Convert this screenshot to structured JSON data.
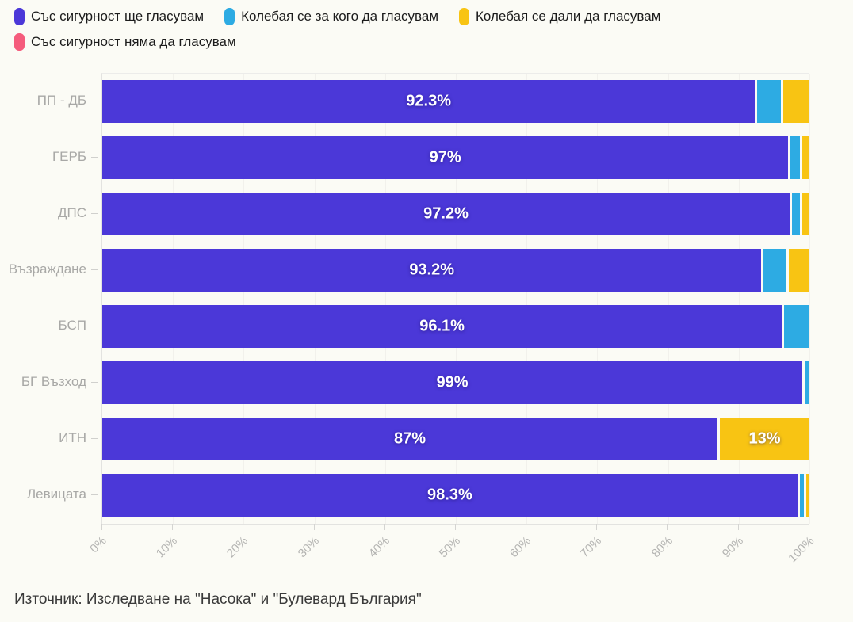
{
  "page": {
    "background": "#fbfbf5"
  },
  "legend": {
    "items": [
      {
        "key": "certain-yes",
        "label": "Със сигурност ще гласувам",
        "color": "#4b38d8"
      },
      {
        "key": "undecided-who",
        "label": "Колебая се за кого да гласувам",
        "color": "#2dabe3"
      },
      {
        "key": "undecided-if",
        "label": "Колебая се дали да гласувам",
        "color": "#f8c413"
      },
      {
        "key": "certain-no",
        "label": "Със сигурност няма да гласувам",
        "color": "#f55c7c"
      }
    ]
  },
  "chart_data": {
    "type": "bar",
    "orientation": "horizontal",
    "stacked": true,
    "unit": "%",
    "xlim": [
      0,
      100
    ],
    "grid": true,
    "legend_position": "top",
    "categories": [
      "ПП - ДБ",
      "ГЕРБ",
      "ДПС",
      "Възраждане",
      "БСП",
      "БГ Възход",
      "ИТН",
      "Левицата"
    ],
    "series": [
      {
        "key": "certain-yes",
        "name": "Със сигурност ще гласувам",
        "color": "#4b38d8",
        "values": [
          92.3,
          97,
          97.2,
          93.2,
          96.1,
          99,
          87,
          98.3
        ],
        "labels": [
          "92.3%",
          "97%",
          "97.2%",
          "93.2%",
          "96.1%",
          "99%",
          "87%",
          "98.3%"
        ]
      },
      {
        "key": "undecided-who",
        "name": "Колебая се за кого да гласувам",
        "color": "#2dabe3",
        "values": [
          3.7,
          1.6,
          1.5,
          3.5,
          3.9,
          1.0,
          0,
          0.9
        ],
        "labels": [
          null,
          null,
          null,
          null,
          null,
          null,
          null,
          null
        ]
      },
      {
        "key": "undecided-if",
        "name": "Колебая се дали да гласувам",
        "color": "#f8c413",
        "values": [
          4.0,
          1.4,
          1.3,
          3.3,
          0,
          0,
          13,
          0.8
        ],
        "labels": [
          null,
          null,
          null,
          null,
          null,
          null,
          "13%",
          null
        ]
      },
      {
        "key": "certain-no",
        "name": "Със сигурност няма да гласувам",
        "color": "#f55c7c",
        "values": [
          0,
          0,
          0,
          0,
          0,
          0,
          0,
          0
        ],
        "labels": [
          null,
          null,
          null,
          null,
          null,
          null,
          null,
          null
        ]
      }
    ],
    "x_ticks": [
      "0%",
      "10%",
      "20%",
      "30%",
      "40%",
      "50%",
      "60%",
      "70%",
      "80%",
      "90%",
      "100%"
    ]
  },
  "source": {
    "text": "Източник: Изследване на \"Насока\" и \"Булевард България\""
  }
}
